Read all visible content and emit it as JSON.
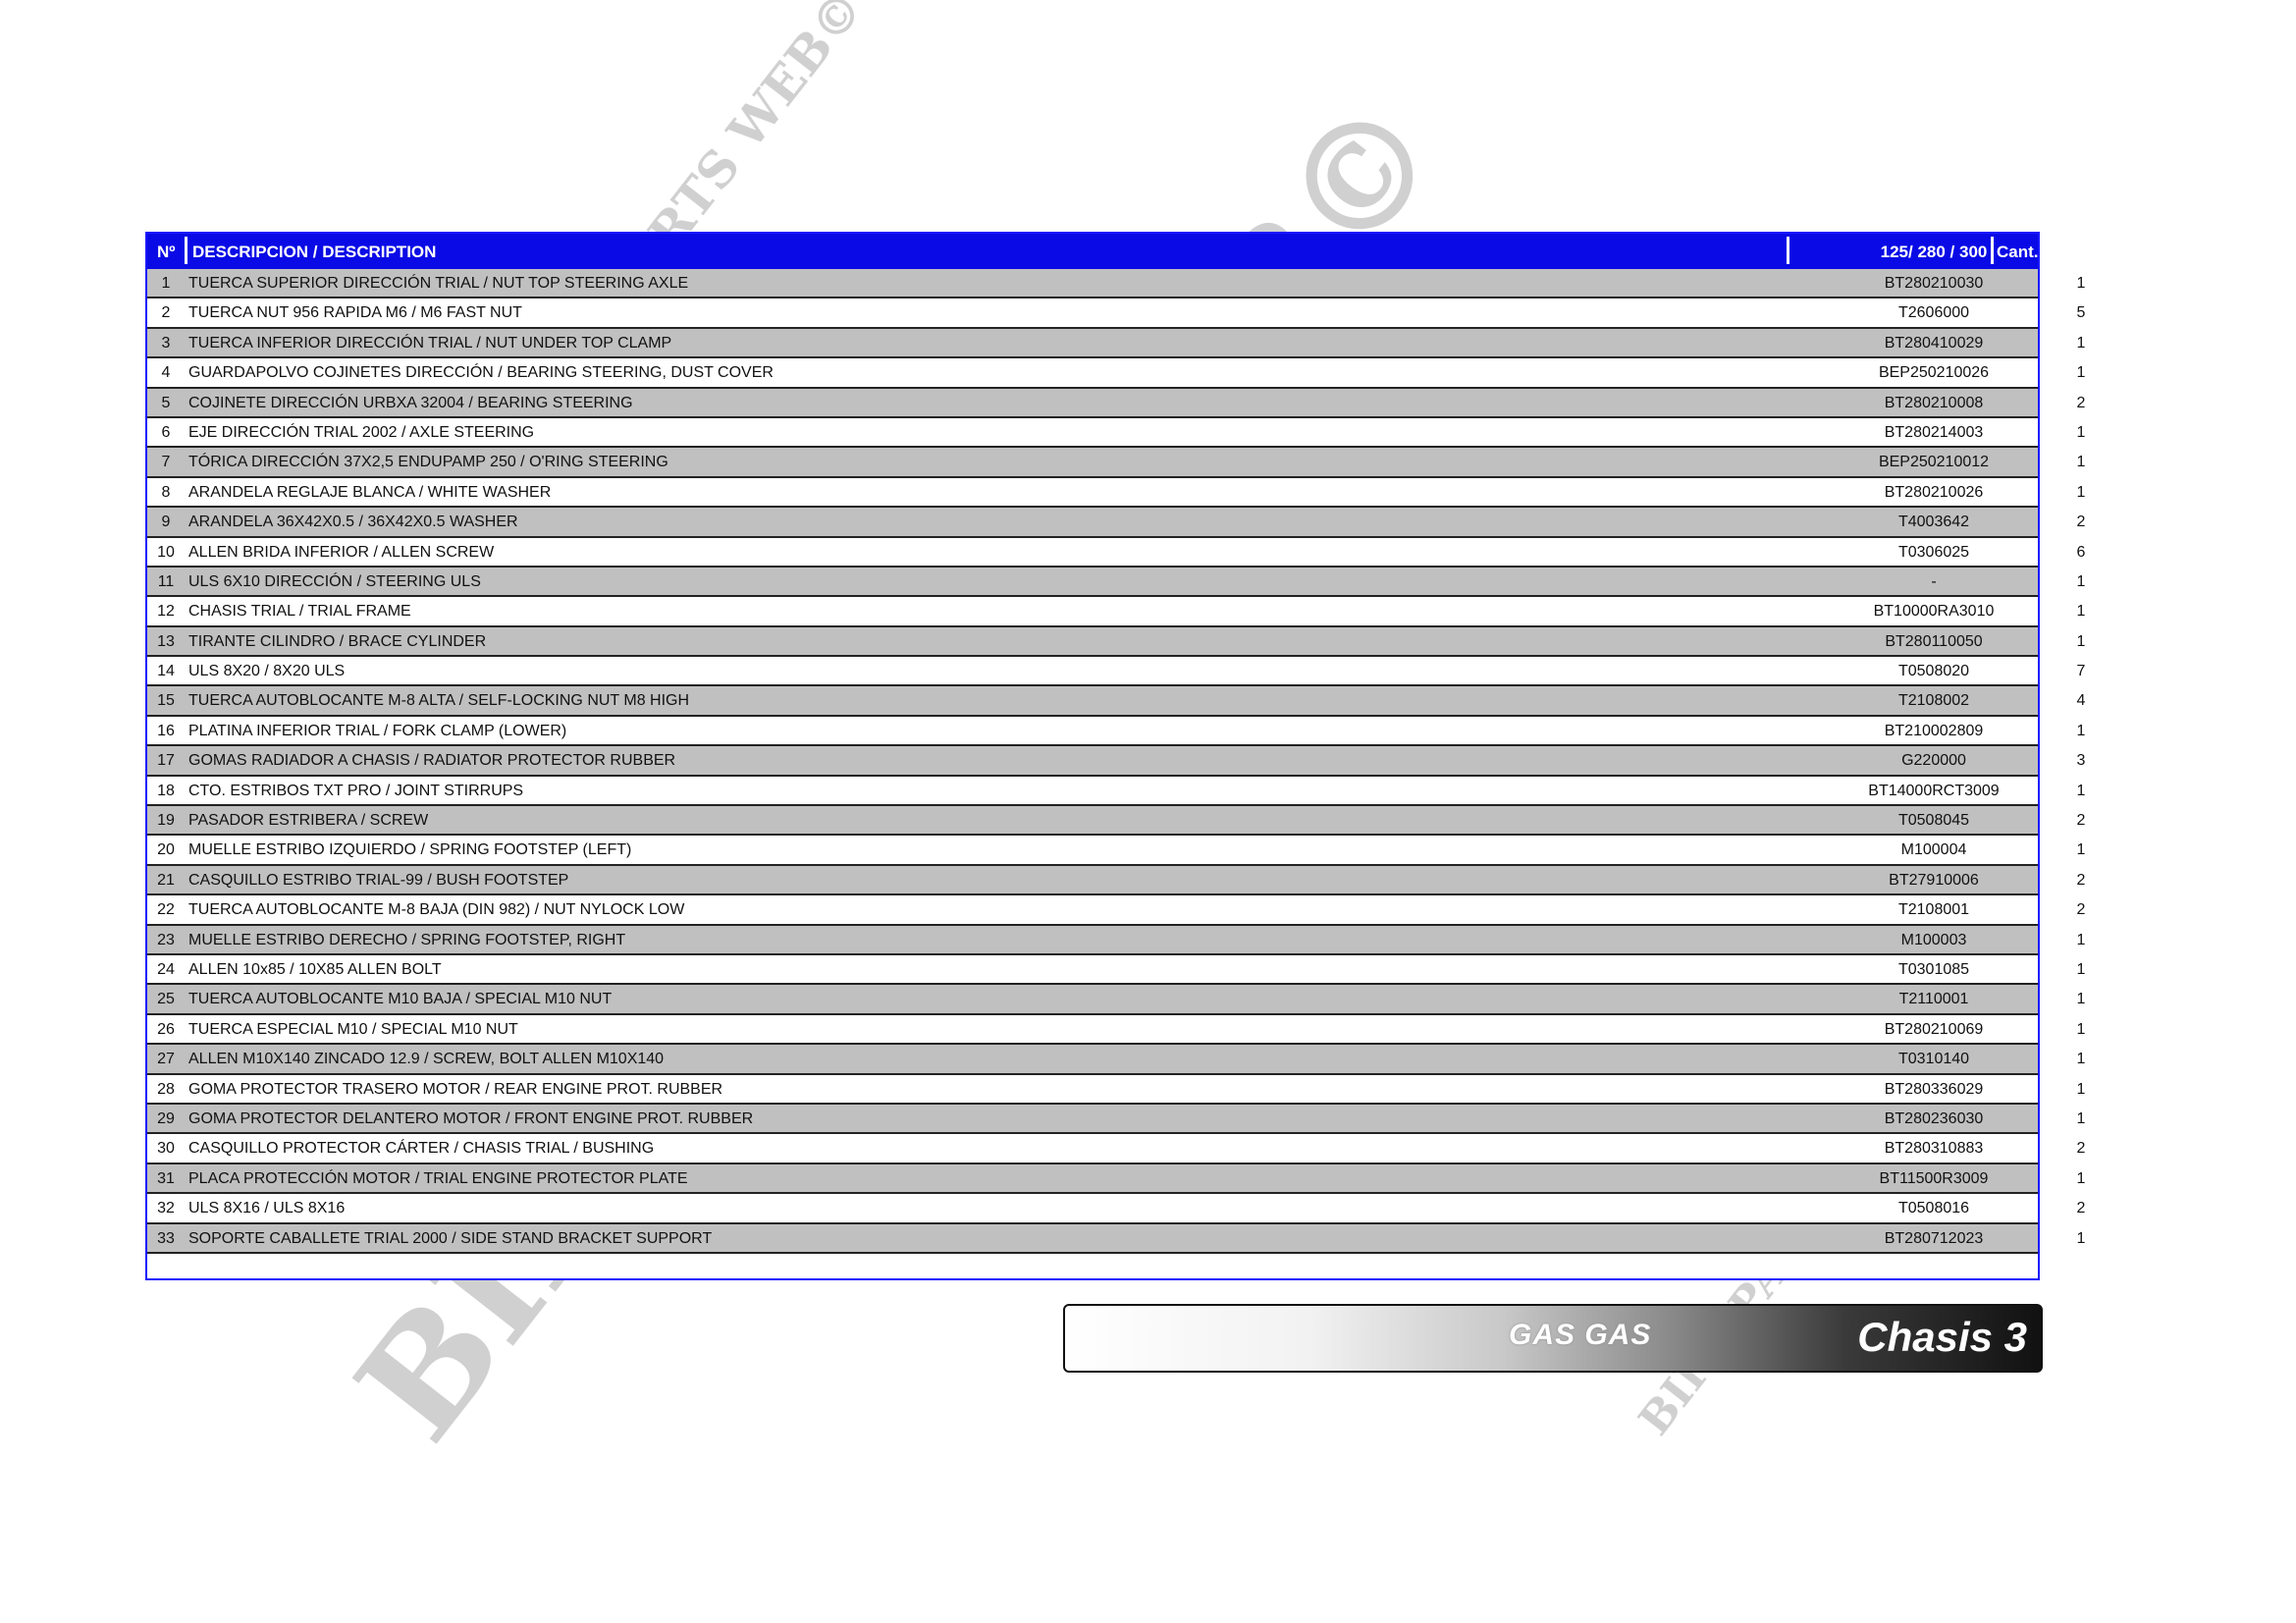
{
  "header": {
    "no": "Nº",
    "description": "DESCRIPCION / DESCRIPTION",
    "models": "125/ 280 / 300",
    "qty": "Cant."
  },
  "rows": [
    {
      "no": "1",
      "desc": "TUERCA SUPERIOR DIRECCIÓN TRIAL / NUT TOP STEERING AXLE",
      "code": "BT280210030",
      "qty": "1"
    },
    {
      "no": "2",
      "desc": "TUERCA NUT 956 RAPIDA M6 / M6 FAST NUT",
      "code": "T2606000",
      "qty": "5"
    },
    {
      "no": "3",
      "desc": "TUERCA INFERIOR DIRECCIÓN TRIAL / NUT UNDER TOP CLAMP",
      "code": "BT280410029",
      "qty": "1"
    },
    {
      "no": "4",
      "desc": "GUARDAPOLVO COJINETES DIRECCIÓN / BEARING STEERING, DUST COVER",
      "code": "BEP250210026",
      "qty": "1"
    },
    {
      "no": "5",
      "desc": "COJINETE DIRECCIÓN URBXA 32004 / BEARING STEERING",
      "code": "BT280210008",
      "qty": "2"
    },
    {
      "no": "6",
      "desc": "EJE DIRECCIÓN TRIAL 2002 / AXLE STEERING",
      "code": "BT280214003",
      "qty": "1"
    },
    {
      "no": "7",
      "desc": "TÓRICA DIRECCIÓN 37X2,5 ENDUPAMP 250 / O'RING STEERING",
      "code": "BEP250210012",
      "qty": "1"
    },
    {
      "no": "8",
      "desc": "ARANDELA REGLAJE BLANCA / WHITE WASHER",
      "code": "BT280210026",
      "qty": "1"
    },
    {
      "no": "9",
      "desc": "ARANDELA 36X42X0.5 / 36X42X0.5 WASHER",
      "code": "T4003642",
      "qty": "2"
    },
    {
      "no": "10",
      "desc": "ALLEN BRIDA INFERIOR / ALLEN SCREW",
      "code": "T0306025",
      "qty": "6"
    },
    {
      "no": "11",
      "desc": "ULS 6X10 DIRECCIÓN / STEERING ULS",
      "code": "-",
      "qty": "1"
    },
    {
      "no": "12",
      "desc": "CHASIS TRIAL  /  TRIAL FRAME",
      "code": "BT10000RA3010",
      "qty": "1"
    },
    {
      "no": "13",
      "desc": "TIRANTE CILINDRO / BRACE CYLINDER",
      "code": "BT280110050",
      "qty": "1"
    },
    {
      "no": "14",
      "desc": "ULS 8X20 / 8X20 ULS",
      "code": "T0508020",
      "qty": "7"
    },
    {
      "no": "15",
      "desc": "TUERCA AUTOBLOCANTE M-8 ALTA / SELF-LOCKING NUT M8 HIGH",
      "code": "T2108002",
      "qty": "4"
    },
    {
      "no": "16",
      "desc": "PLATINA INFERIOR TRIAL / FORK CLAMP (LOWER)",
      "code": "BT210002809",
      "qty": "1"
    },
    {
      "no": "17",
      "desc": "GOMAS RADIADOR A CHASIS / RADIATOR PROTECTOR RUBBER",
      "code": "G220000",
      "qty": "3"
    },
    {
      "no": "18",
      "desc": "CTO. ESTRIBOS TXT PRO / JOINT STIRRUPS",
      "code": "BT14000RCT3009",
      "qty": "1"
    },
    {
      "no": "19",
      "desc": "PASADOR ESTRIBERA /  SCREW",
      "code": "T0508045",
      "qty": "2"
    },
    {
      "no": "20",
      "desc": "MUELLE ESTRIBO IZQUIERDO / SPRING FOOTSTEP (LEFT)",
      "code": "M100004",
      "qty": "1"
    },
    {
      "no": "21",
      "desc": "CASQUILLO ESTRIBO TRIAL-99 / BUSH FOOTSTEP",
      "code": "BT27910006",
      "qty": "2"
    },
    {
      "no": "22",
      "desc": "TUERCA AUTOBLOCANTE M-8 BAJA (DIN 982) / NUT NYLOCK LOW",
      "code": "T2108001",
      "qty": "2"
    },
    {
      "no": "23",
      "desc": "MUELLE ESTRIBO DERECHO / SPRING FOOTSTEP, RIGHT",
      "code": "M100003",
      "qty": "1"
    },
    {
      "no": "24",
      "desc": "ALLEN 10x85 / 10X85 ALLEN BOLT",
      "code": "T0301085",
      "qty": "1"
    },
    {
      "no": "25",
      "desc": "TUERCA AUTOBLOCANTE M10 BAJA / SPECIAL M10 NUT",
      "code": "T2110001",
      "qty": "1"
    },
    {
      "no": "26",
      "desc": "TUERCA ESPECIAL M10 / SPECIAL M10 NUT",
      "code": "BT280210069",
      "qty": "1"
    },
    {
      "no": "27",
      "desc": "ALLEN M10X140 ZINCADO 12.9 / SCREW, BOLT ALLEN M10X140",
      "code": "T0310140",
      "qty": "1"
    },
    {
      "no": "28",
      "desc": "GOMA PROTECTOR TRASERO MOTOR / REAR ENGINE PROT. RUBBER",
      "code": "BT280336029",
      "qty": "1"
    },
    {
      "no": "29",
      "desc": "GOMA PROTECTOR DELANTERO MOTOR / FRONT ENGINE PROT. RUBBER",
      "code": "BT280236030",
      "qty": "1"
    },
    {
      "no": "30",
      "desc": "CASQUILLO PROTECTOR CÁRTER / CHASIS TRIAL / BUSHING",
      "code": "BT280310883",
      "qty": "2"
    },
    {
      "no": "31",
      "desc": "PLACA PROTECCIÓN MOTOR / TRIAL ENGINE PROTECTOR PLATE",
      "code": "BT11500R3009",
      "qty": "1"
    },
    {
      "no": "32",
      "desc": "ULS 8X16 / ULS 8X16",
      "code": "T0508016",
      "qty": "2"
    },
    {
      "no": "33",
      "desc": "SOPORTE CABALLETE TRIAL 2000 / SIDE STAND BRACKET SUPPORT",
      "code": "BT280712023",
      "qty": "1"
    }
  ],
  "banner": {
    "brand": "GAS GAS",
    "section": "Chasis 3"
  },
  "watermark": "BIKE-PARTS WEB©",
  "colors": {
    "header_bg": "#0a0ae6",
    "row_alt": "#c0c0c0",
    "border": "#1a1aff"
  }
}
